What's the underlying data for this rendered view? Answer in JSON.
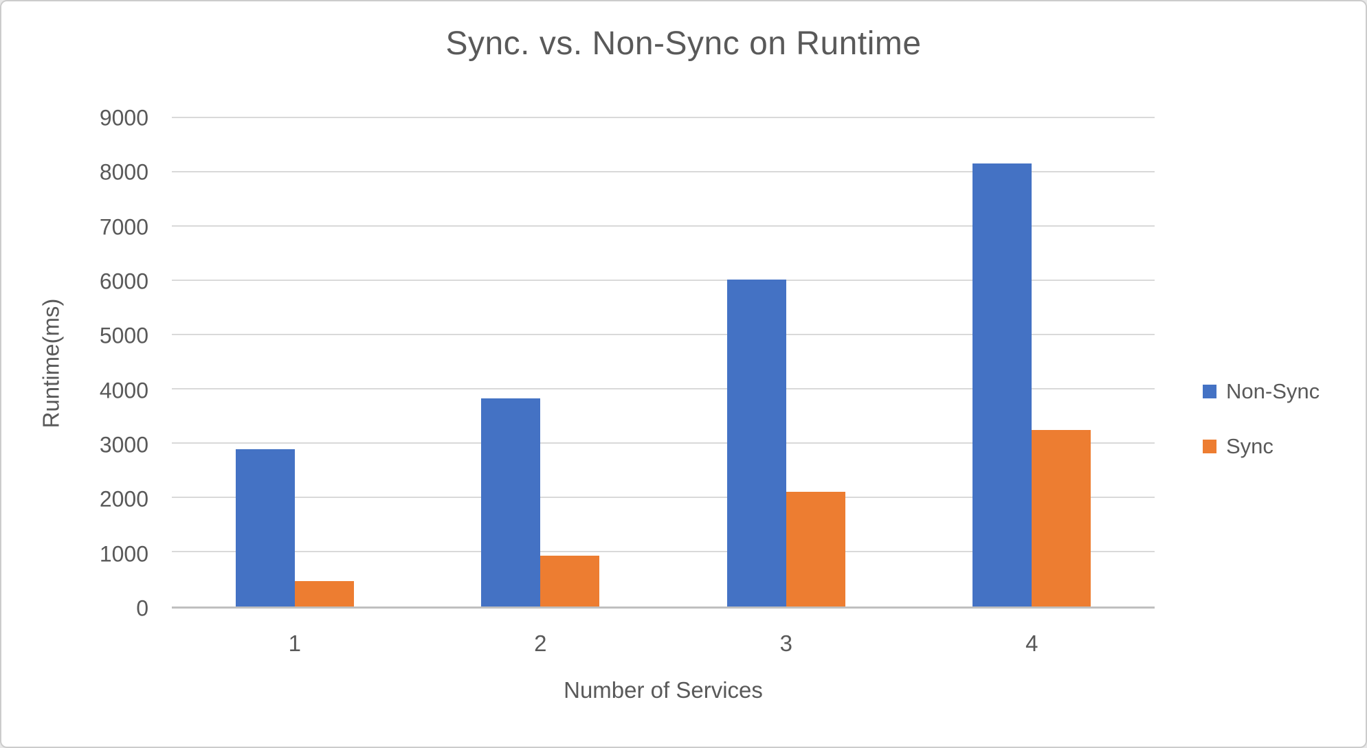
{
  "chart_data": {
    "type": "bar",
    "title": "Sync. vs. Non-Sync on Runtime",
    "xlabel": "Number of Services",
    "ylabel": "Runtime(ms)",
    "categories": [
      "1",
      "2",
      "3",
      "4"
    ],
    "series": [
      {
        "name": "Non-Sync",
        "color": "#4472C4",
        "values": [
          2900,
          3840,
          6030,
          8160
        ]
      },
      {
        "name": "Sync",
        "color": "#ED7D31",
        "values": [
          470,
          940,
          2110,
          3250
        ]
      }
    ],
    "ylim": [
      0,
      9000
    ],
    "ytick_step": 1000,
    "grid": true,
    "legend_position": "right",
    "colors": {
      "text": "#595959",
      "gridline": "#D9D9D9",
      "axis_line": "#BFBFBF"
    }
  }
}
